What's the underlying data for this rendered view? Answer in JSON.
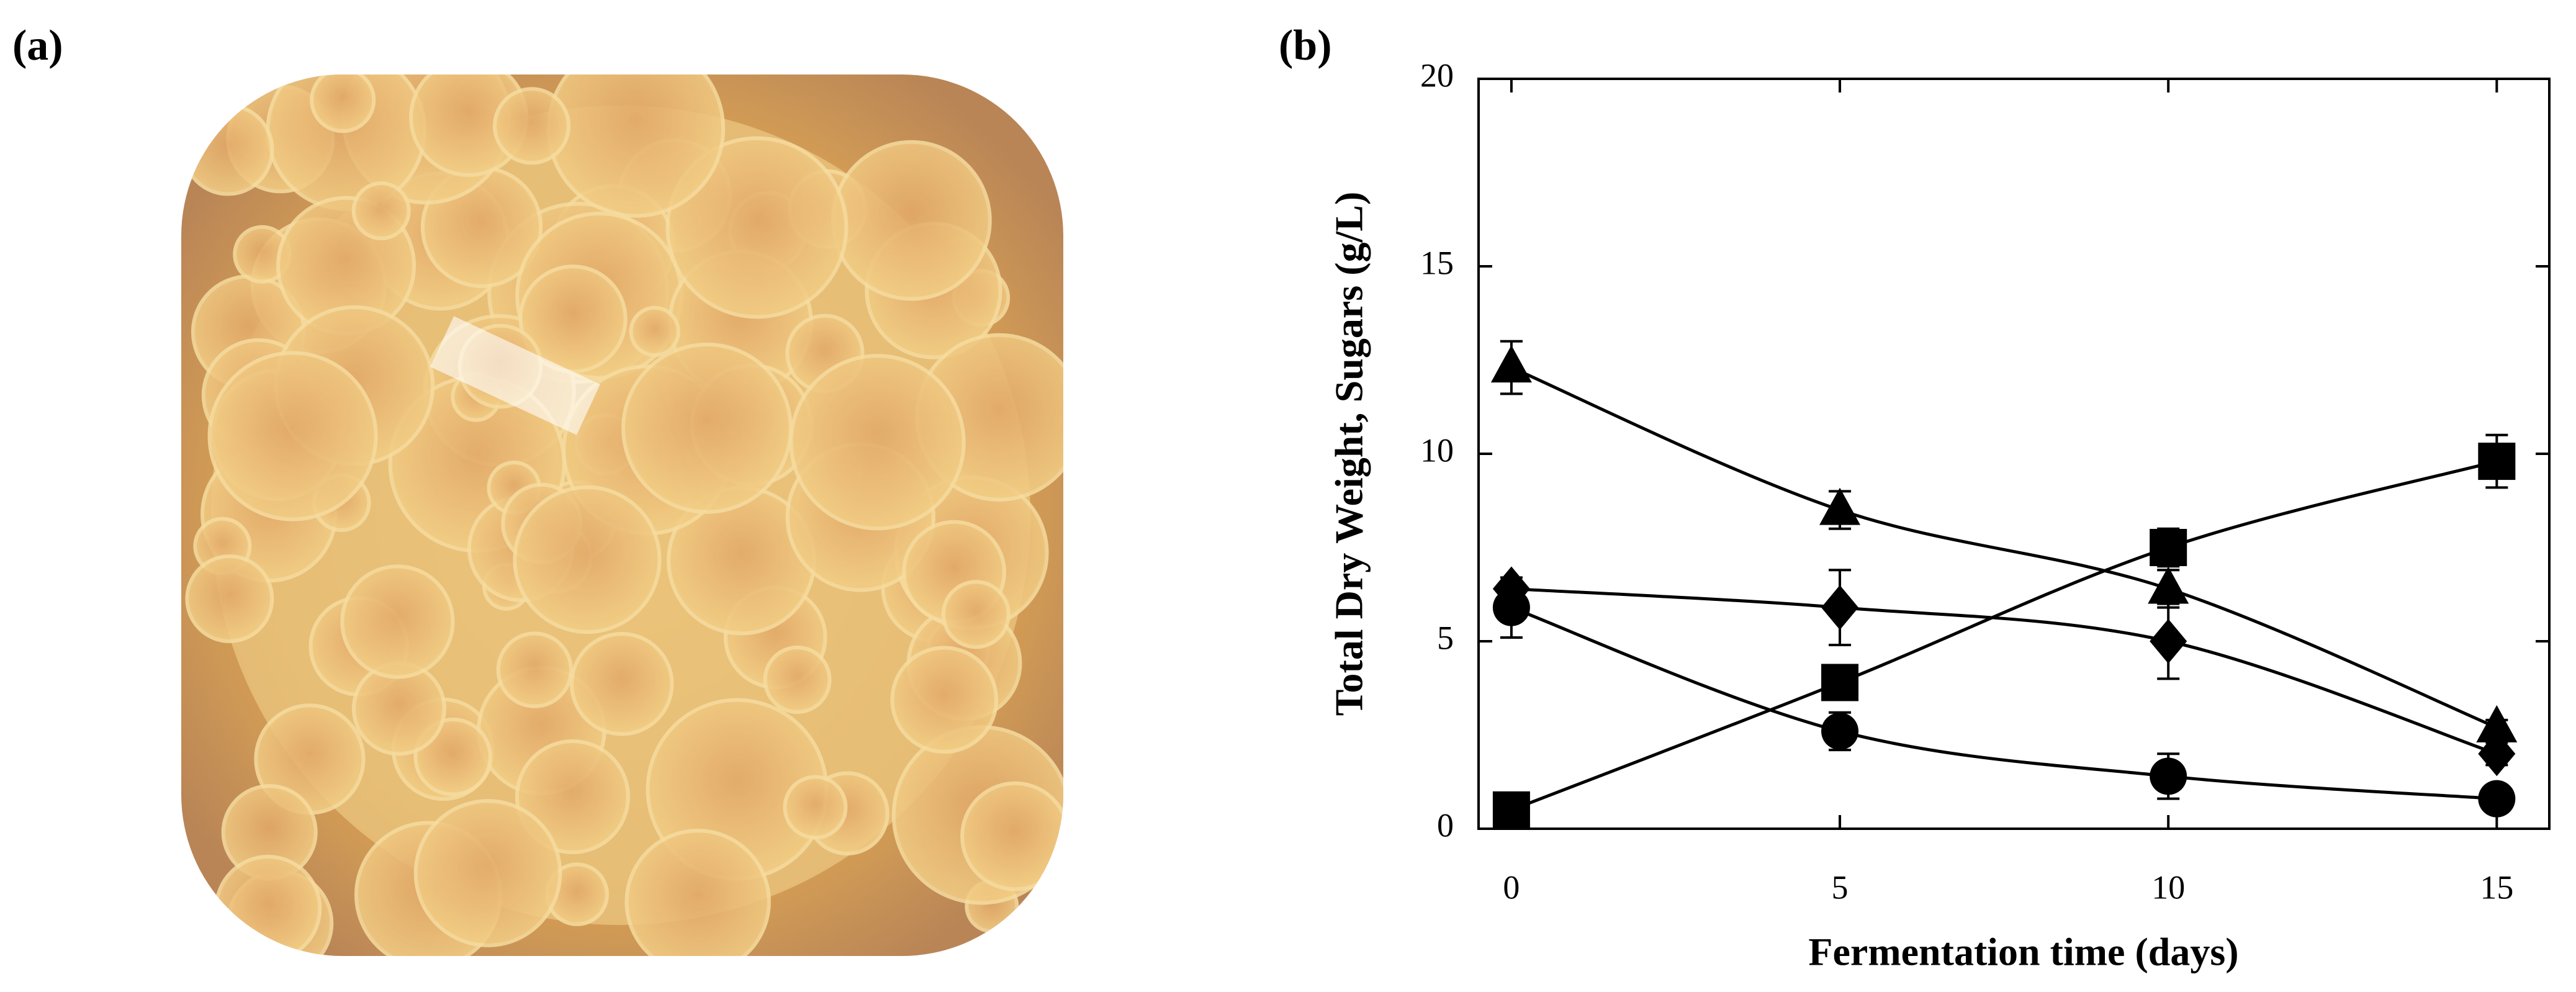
{
  "photo": {
    "label": "(a)"
  },
  "chart_data": {
    "type": "line",
    "panel_label": "(b)",
    "x_label": "Fermentation time (days)",
    "y_label": "Total Dry Weight, Sugars (g/L)",
    "x": [
      0,
      5,
      10,
      15
    ],
    "xlim": [
      -0.5,
      15.8
    ],
    "ylim": [
      0,
      20
    ],
    "xticks": [
      0,
      5,
      10,
      15
    ],
    "yticks": [
      0,
      5,
      10,
      15,
      20
    ],
    "smooth": true,
    "series": [
      {
        "marker": "triangle",
        "color": "#000000",
        "values": [
          12.3,
          8.5,
          6.4,
          2.7
        ],
        "errors": [
          0.7,
          0.5,
          0.5,
          0.2
        ]
      },
      {
        "marker": "square",
        "color": "#000000",
        "values": [
          0.5,
          3.9,
          7.5,
          9.8
        ],
        "errors": [
          0.1,
          0.3,
          0.5,
          0.7
        ]
      },
      {
        "marker": "diamond",
        "color": "#000000",
        "values": [
          6.4,
          5.9,
          5.0,
          2.0
        ],
        "errors": [
          0.2,
          1.0,
          1.0,
          0.3
        ]
      },
      {
        "marker": "circle",
        "color": "#000000",
        "values": [
          5.9,
          2.6,
          1.4,
          0.8
        ],
        "errors": [
          0.8,
          0.5,
          0.6,
          0.3
        ]
      }
    ]
  }
}
